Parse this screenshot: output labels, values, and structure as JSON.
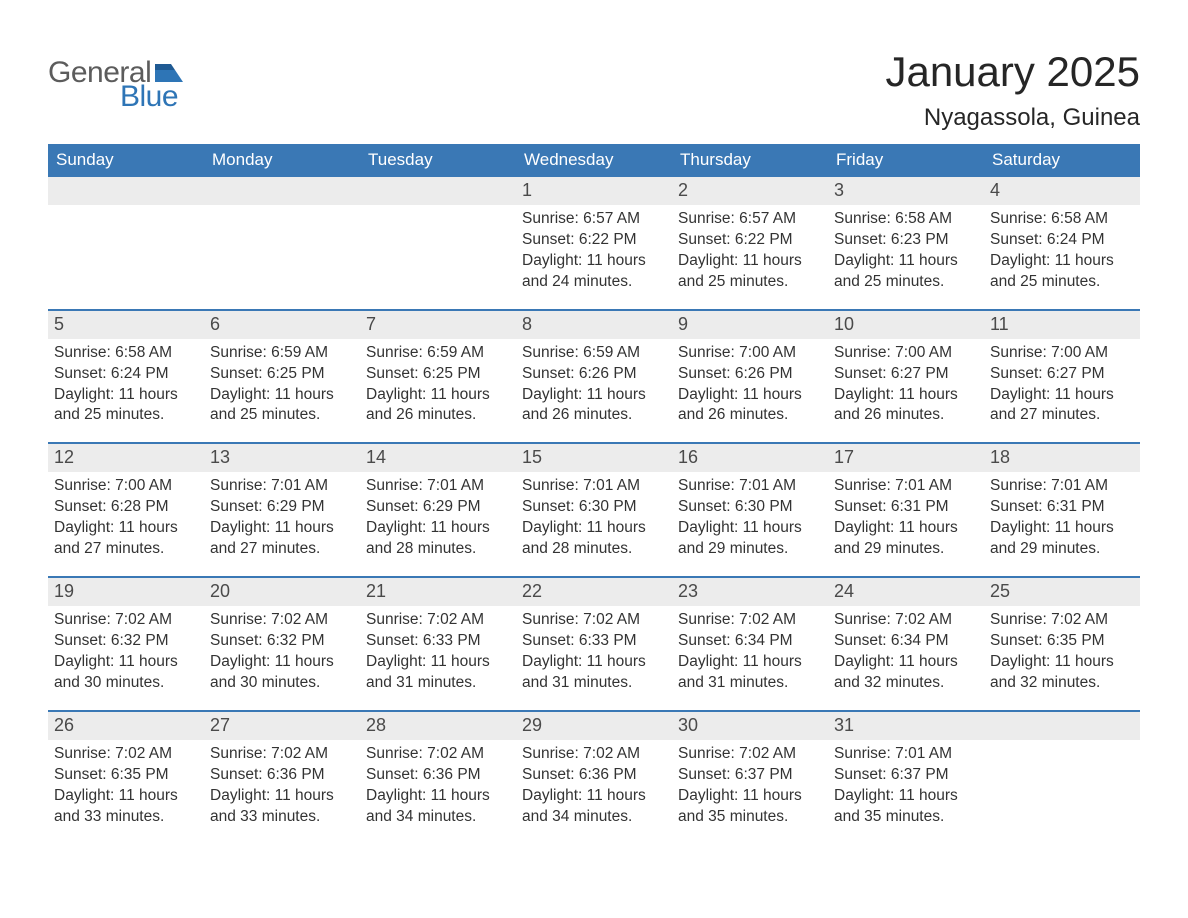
{
  "logo": {
    "text_general": "General",
    "text_blue": "Blue",
    "flag_color": "#2e75b6",
    "general_color": "#5c5c5c",
    "blue_color": "#2e75b6"
  },
  "title": "January 2025",
  "location": "Nyagassola, Guinea",
  "colors": {
    "header_bg": "#3a78b5",
    "header_text": "#ffffff",
    "daynum_bg": "#ececec",
    "daynum_text": "#4a4a4a",
    "body_text": "#333333",
    "week_divider": "#3a78b5",
    "background": "#ffffff"
  },
  "fonts": {
    "family": "Arial",
    "month_title_size": 42,
    "location_size": 24,
    "dow_size": 17,
    "daynum_size": 18,
    "info_size": 15.5
  },
  "days_of_week": [
    "Sunday",
    "Monday",
    "Tuesday",
    "Wednesday",
    "Thursday",
    "Friday",
    "Saturday"
  ],
  "weeks": [
    [
      {
        "empty": true
      },
      {
        "empty": true
      },
      {
        "empty": true
      },
      {
        "day": "1",
        "sunrise": "Sunrise: 6:57 AM",
        "sunset": "Sunset: 6:22 PM",
        "daylight": "Daylight: 11 hours and 24 minutes."
      },
      {
        "day": "2",
        "sunrise": "Sunrise: 6:57 AM",
        "sunset": "Sunset: 6:22 PM",
        "daylight": "Daylight: 11 hours and 25 minutes."
      },
      {
        "day": "3",
        "sunrise": "Sunrise: 6:58 AM",
        "sunset": "Sunset: 6:23 PM",
        "daylight": "Daylight: 11 hours and 25 minutes."
      },
      {
        "day": "4",
        "sunrise": "Sunrise: 6:58 AM",
        "sunset": "Sunset: 6:24 PM",
        "daylight": "Daylight: 11 hours and 25 minutes."
      }
    ],
    [
      {
        "day": "5",
        "sunrise": "Sunrise: 6:58 AM",
        "sunset": "Sunset: 6:24 PM",
        "daylight": "Daylight: 11 hours and 25 minutes."
      },
      {
        "day": "6",
        "sunrise": "Sunrise: 6:59 AM",
        "sunset": "Sunset: 6:25 PM",
        "daylight": "Daylight: 11 hours and 25 minutes."
      },
      {
        "day": "7",
        "sunrise": "Sunrise: 6:59 AM",
        "sunset": "Sunset: 6:25 PM",
        "daylight": "Daylight: 11 hours and 26 minutes."
      },
      {
        "day": "8",
        "sunrise": "Sunrise: 6:59 AM",
        "sunset": "Sunset: 6:26 PM",
        "daylight": "Daylight: 11 hours and 26 minutes."
      },
      {
        "day": "9",
        "sunrise": "Sunrise: 7:00 AM",
        "sunset": "Sunset: 6:26 PM",
        "daylight": "Daylight: 11 hours and 26 minutes."
      },
      {
        "day": "10",
        "sunrise": "Sunrise: 7:00 AM",
        "sunset": "Sunset: 6:27 PM",
        "daylight": "Daylight: 11 hours and 26 minutes."
      },
      {
        "day": "11",
        "sunrise": "Sunrise: 7:00 AM",
        "sunset": "Sunset: 6:27 PM",
        "daylight": "Daylight: 11 hours and 27 minutes."
      }
    ],
    [
      {
        "day": "12",
        "sunrise": "Sunrise: 7:00 AM",
        "sunset": "Sunset: 6:28 PM",
        "daylight": "Daylight: 11 hours and 27 minutes."
      },
      {
        "day": "13",
        "sunrise": "Sunrise: 7:01 AM",
        "sunset": "Sunset: 6:29 PM",
        "daylight": "Daylight: 11 hours and 27 minutes."
      },
      {
        "day": "14",
        "sunrise": "Sunrise: 7:01 AM",
        "sunset": "Sunset: 6:29 PM",
        "daylight": "Daylight: 11 hours and 28 minutes."
      },
      {
        "day": "15",
        "sunrise": "Sunrise: 7:01 AM",
        "sunset": "Sunset: 6:30 PM",
        "daylight": "Daylight: 11 hours and 28 minutes."
      },
      {
        "day": "16",
        "sunrise": "Sunrise: 7:01 AM",
        "sunset": "Sunset: 6:30 PM",
        "daylight": "Daylight: 11 hours and 29 minutes."
      },
      {
        "day": "17",
        "sunrise": "Sunrise: 7:01 AM",
        "sunset": "Sunset: 6:31 PM",
        "daylight": "Daylight: 11 hours and 29 minutes."
      },
      {
        "day": "18",
        "sunrise": "Sunrise: 7:01 AM",
        "sunset": "Sunset: 6:31 PM",
        "daylight": "Daylight: 11 hours and 29 minutes."
      }
    ],
    [
      {
        "day": "19",
        "sunrise": "Sunrise: 7:02 AM",
        "sunset": "Sunset: 6:32 PM",
        "daylight": "Daylight: 11 hours and 30 minutes."
      },
      {
        "day": "20",
        "sunrise": "Sunrise: 7:02 AM",
        "sunset": "Sunset: 6:32 PM",
        "daylight": "Daylight: 11 hours and 30 minutes."
      },
      {
        "day": "21",
        "sunrise": "Sunrise: 7:02 AM",
        "sunset": "Sunset: 6:33 PM",
        "daylight": "Daylight: 11 hours and 31 minutes."
      },
      {
        "day": "22",
        "sunrise": "Sunrise: 7:02 AM",
        "sunset": "Sunset: 6:33 PM",
        "daylight": "Daylight: 11 hours and 31 minutes."
      },
      {
        "day": "23",
        "sunrise": "Sunrise: 7:02 AM",
        "sunset": "Sunset: 6:34 PM",
        "daylight": "Daylight: 11 hours and 31 minutes."
      },
      {
        "day": "24",
        "sunrise": "Sunrise: 7:02 AM",
        "sunset": "Sunset: 6:34 PM",
        "daylight": "Daylight: 11 hours and 32 minutes."
      },
      {
        "day": "25",
        "sunrise": "Sunrise: 7:02 AM",
        "sunset": "Sunset: 6:35 PM",
        "daylight": "Daylight: 11 hours and 32 minutes."
      }
    ],
    [
      {
        "day": "26",
        "sunrise": "Sunrise: 7:02 AM",
        "sunset": "Sunset: 6:35 PM",
        "daylight": "Daylight: 11 hours and 33 minutes."
      },
      {
        "day": "27",
        "sunrise": "Sunrise: 7:02 AM",
        "sunset": "Sunset: 6:36 PM",
        "daylight": "Daylight: 11 hours and 33 minutes."
      },
      {
        "day": "28",
        "sunrise": "Sunrise: 7:02 AM",
        "sunset": "Sunset: 6:36 PM",
        "daylight": "Daylight: 11 hours and 34 minutes."
      },
      {
        "day": "29",
        "sunrise": "Sunrise: 7:02 AM",
        "sunset": "Sunset: 6:36 PM",
        "daylight": "Daylight: 11 hours and 34 minutes."
      },
      {
        "day": "30",
        "sunrise": "Sunrise: 7:02 AM",
        "sunset": "Sunset: 6:37 PM",
        "daylight": "Daylight: 11 hours and 35 minutes."
      },
      {
        "day": "31",
        "sunrise": "Sunrise: 7:01 AM",
        "sunset": "Sunset: 6:37 PM",
        "daylight": "Daylight: 11 hours and 35 minutes."
      },
      {
        "empty": true
      }
    ]
  ]
}
